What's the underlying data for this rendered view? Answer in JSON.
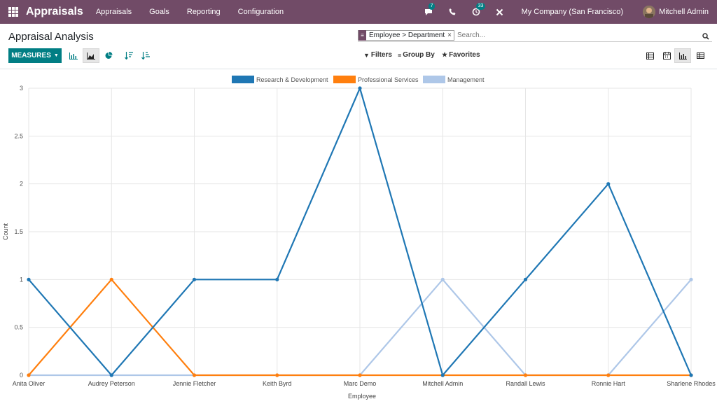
{
  "navbar": {
    "brand": "Appraisals",
    "menu": [
      "Appraisals",
      "Goals",
      "Reporting",
      "Configuration"
    ],
    "messages_count": "7",
    "activities_count": "33",
    "company": "My Company (San Francisco)",
    "user": "Mitchell Admin"
  },
  "control_panel": {
    "title": "Appraisal Analysis",
    "facet_label": "Employee > Department",
    "facet_remove": "×",
    "search_placeholder": "Search...",
    "measures_label": "MEASURES",
    "filters_label": "Filters",
    "group_by_label": "Group By",
    "favorites_label": "Favorites"
  },
  "colors": {
    "brand": "#714B67",
    "accent": "#017E84",
    "series": [
      "#1f77b4",
      "#ff7f0e",
      "#aec7e8"
    ]
  },
  "chart_data": {
    "type": "line",
    "title": "",
    "xlabel": "Employee",
    "ylabel": "Count",
    "ylim": [
      0,
      3
    ],
    "yticks": [
      "0",
      "0.5",
      "1",
      "1.5",
      "2",
      "2.5",
      "3"
    ],
    "categories": [
      "Anita Oliver",
      "Audrey Peterson",
      "Jennie Fletcher",
      "Keith Byrd",
      "Marc Demo",
      "Mitchell Admin",
      "Randall Lewis",
      "Ronnie Hart",
      "Sharlene Rhodes"
    ],
    "series": [
      {
        "name": "Research & Development",
        "color": "#1f77b4",
        "values": [
          1,
          0,
          1,
          1,
          3,
          0,
          1,
          2,
          0
        ]
      },
      {
        "name": "Professional Services",
        "color": "#ff7f0e",
        "values": [
          0,
          1,
          0,
          0,
          0,
          0,
          0,
          0,
          0
        ]
      },
      {
        "name": "Management",
        "color": "#aec7e8",
        "values": [
          0,
          0,
          0,
          0,
          0,
          1,
          0,
          0,
          1
        ]
      }
    ]
  }
}
